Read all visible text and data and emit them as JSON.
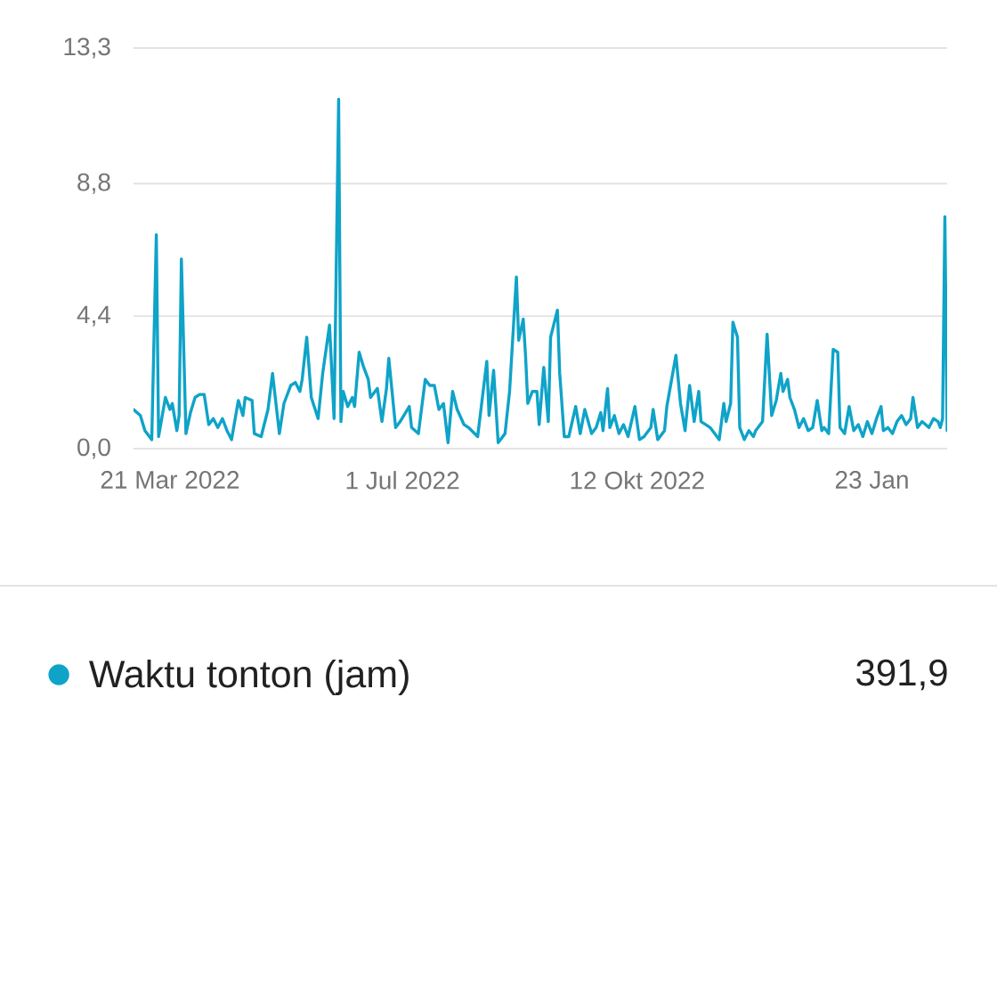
{
  "chart_data": {
    "type": "line",
    "x": [
      "2022-03-05",
      "2022-03-08",
      "2022-03-10",
      "2022-03-13",
      "2022-03-15",
      "2022-03-16",
      "2022-03-19",
      "2022-03-21",
      "2022-03-22",
      "2022-03-24",
      "2022-03-25",
      "2022-03-26",
      "2022-03-28",
      "2022-03-30",
      "2022-04-01",
      "2022-04-03",
      "2022-04-05",
      "2022-04-07",
      "2022-04-09",
      "2022-04-11",
      "2022-04-13",
      "2022-04-15",
      "2022-04-17",
      "2022-04-20",
      "2022-04-22",
      "2022-04-23",
      "2022-04-26",
      "2022-04-27",
      "2022-04-30",
      "2022-05-03",
      "2022-05-05",
      "2022-05-08",
      "2022-05-10",
      "2022-05-13",
      "2022-05-15",
      "2022-05-17",
      "2022-05-18",
      "2022-05-20",
      "2022-05-22",
      "2022-05-25",
      "2022-05-27",
      "2022-05-30",
      "2022-06-01",
      "2022-06-03",
      "2022-06-04",
      "2022-06-05",
      "2022-06-07",
      "2022-06-09",
      "2022-06-10",
      "2022-06-12",
      "2022-06-14",
      "2022-06-16",
      "2022-06-17",
      "2022-06-20",
      "2022-06-22",
      "2022-06-24",
      "2022-06-25",
      "2022-06-28",
      "2022-06-30",
      "2022-07-04",
      "2022-07-05",
      "2022-07-08",
      "2022-07-11",
      "2022-07-13",
      "2022-07-15",
      "2022-07-17",
      "2022-07-19",
      "2022-07-21",
      "2022-07-23",
      "2022-07-25",
      "2022-07-28",
      "2022-07-30",
      "2022-08-03",
      "2022-08-07",
      "2022-08-08",
      "2022-08-10",
      "2022-08-12",
      "2022-08-15",
      "2022-08-17",
      "2022-08-20",
      "2022-08-21",
      "2022-08-23",
      "2022-08-24",
      "2022-08-25",
      "2022-08-27",
      "2022-08-29",
      "2022-08-30",
      "2022-09-01",
      "2022-09-03",
      "2022-09-04",
      "2022-09-05",
      "2022-09-07",
      "2022-09-08",
      "2022-09-10",
      "2022-09-12",
      "2022-09-15",
      "2022-09-17",
      "2022-09-19",
      "2022-09-22",
      "2022-09-24",
      "2022-09-26",
      "2022-09-27",
      "2022-09-29",
      "2022-09-30",
      "2022-10-02",
      "2022-10-04",
      "2022-10-06",
      "2022-10-08",
      "2022-10-11",
      "2022-10-13",
      "2022-10-15",
      "2022-10-18",
      "2022-10-19",
      "2022-10-21",
      "2022-10-24",
      "2022-10-25",
      "2022-10-29",
      "2022-10-31",
      "2022-11-02",
      "2022-11-04",
      "2022-11-06",
      "2022-11-08",
      "2022-11-09",
      "2022-11-11",
      "2022-11-13",
      "2022-11-15",
      "2022-11-17",
      "2022-11-19",
      "2022-11-20",
      "2022-11-22",
      "2022-11-23",
      "2022-11-25",
      "2022-11-26",
      "2022-11-28",
      "2022-11-30",
      "2022-12-02",
      "2022-12-03",
      "2022-12-06",
      "2022-12-08",
      "2022-12-10",
      "2022-12-12",
      "2022-12-14",
      "2022-12-15",
      "2022-12-17",
      "2022-12-18",
      "2022-12-20",
      "2022-12-22",
      "2022-12-24",
      "2022-12-26",
      "2022-12-28",
      "2022-12-30",
      "2023-01-01",
      "2023-01-02",
      "2023-01-04",
      "2023-01-06",
      "2023-01-08",
      "2023-01-09",
      "2023-01-11",
      "2023-01-13",
      "2023-01-15",
      "2023-01-17",
      "2023-01-19",
      "2023-01-21",
      "2023-01-23",
      "2023-01-25",
      "2023-01-27",
      "2023-01-28",
      "2023-01-30",
      "2023-02-01",
      "2023-02-03",
      "2023-02-05",
      "2023-02-07",
      "2023-02-09",
      "2023-02-10",
      "2023-02-12",
      "2023-02-14",
      "2023-02-17",
      "2023-02-19",
      "2023-02-21",
      "2023-02-22",
      "2023-02-23",
      "2023-02-24",
      "2023-02-25"
    ],
    "series": [
      {
        "name": "Waktu tonton (jam)",
        "color": "#0fa3c8",
        "values": [
          1.3,
          1.1,
          0.6,
          0.3,
          7.1,
          0.4,
          1.7,
          1.3,
          1.5,
          0.6,
          1.1,
          6.3,
          0.5,
          1.2,
          1.7,
          1.8,
          1.8,
          0.8,
          1.0,
          0.7,
          1.0,
          0.6,
          0.3,
          1.6,
          1.1,
          1.7,
          1.6,
          0.5,
          0.4,
          1.3,
          2.5,
          0.5,
          1.5,
          2.1,
          2.2,
          1.9,
          2.3,
          3.7,
          1.7,
          1.0,
          2.5,
          4.1,
          1.0,
          11.6,
          0.9,
          1.9,
          1.4,
          1.7,
          1.4,
          3.2,
          2.7,
          2.3,
          1.7,
          2.0,
          0.9,
          2.0,
          3.0,
          0.7,
          0.9,
          1.4,
          0.7,
          0.5,
          2.3,
          2.1,
          2.1,
          1.3,
          1.5,
          0.2,
          1.9,
          1.3,
          0.8,
          0.7,
          0.4,
          2.9,
          1.1,
          2.6,
          0.2,
          0.5,
          1.9,
          5.7,
          3.6,
          4.3,
          3.1,
          1.5,
          1.9,
          1.9,
          0.8,
          2.7,
          0.9,
          3.7,
          4.0,
          4.6,
          2.5,
          0.4,
          0.4,
          1.4,
          0.5,
          1.3,
          0.5,
          0.7,
          1.2,
          0.6,
          2.0,
          0.7,
          1.1,
          0.5,
          0.8,
          0.4,
          1.4,
          0.3,
          0.4,
          0.7,
          1.3,
          0.3,
          0.6,
          1.4,
          3.1,
          1.5,
          0.6,
          2.1,
          0.9,
          1.9,
          0.9,
          0.8,
          0.7,
          0.5,
          0.3,
          1.5,
          0.9,
          1.5,
          4.2,
          3.7,
          0.7,
          0.3,
          0.6,
          0.4,
          0.6,
          0.9,
          3.8,
          1.1,
          1.6,
          2.5,
          1.9,
          2.3,
          1.7,
          1.3,
          0.7,
          1.0,
          0.6,
          0.7,
          1.6,
          0.6,
          0.7,
          0.5,
          3.3,
          3.2,
          0.7,
          0.5,
          1.4,
          0.6,
          0.8,
          0.4,
          0.9,
          0.5,
          1.0,
          1.4,
          0.6,
          0.7,
          0.5,
          0.9,
          1.1,
          0.8,
          1.0,
          1.7,
          0.7,
          0.9,
          0.7,
          1.0,
          0.9,
          0.7,
          1.0,
          7.7,
          0.6
        ]
      }
    ],
    "xlim": [
      "2022-03-05",
      "2023-02-25"
    ],
    "xticks": [
      {
        "value": "2022-03-21",
        "label": "21 Mar 2022"
      },
      {
        "value": "2022-07-01",
        "label": "1 Jul 2022"
      },
      {
        "value": "2022-10-12",
        "label": "12 Okt 2022"
      },
      {
        "value": "2023-01-23",
        "label": "23 Jan"
      }
    ],
    "ylim": [
      0,
      13.3
    ],
    "yticks": [
      {
        "value": 0,
        "label": "0,0"
      },
      {
        "value": 4.4,
        "label": "4,4"
      },
      {
        "value": 8.8,
        "label": "8,8"
      },
      {
        "value": 13.3,
        "label": "13,3"
      }
    ],
    "grid": "y",
    "legend": "bottom",
    "line_style": "solid",
    "annotations": [
      "391,9"
    ]
  }
}
